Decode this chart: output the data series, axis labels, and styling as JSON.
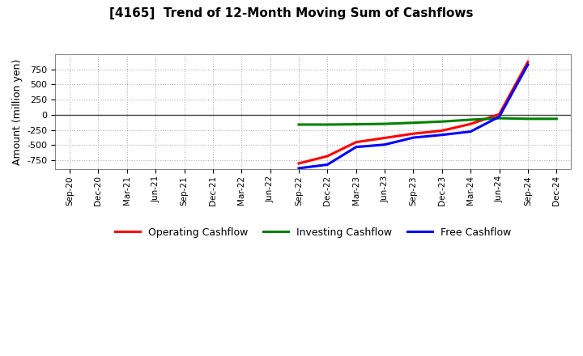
{
  "title": "[4165]  Trend of 12-Month Moving Sum of Cashflows",
  "ylabel": "Amount (million yen)",
  "background_color": "#ffffff",
  "grid_color": "#b0b0b0",
  "x_labels": [
    "Sep-20",
    "Dec-20",
    "Mar-21",
    "Jun-21",
    "Sep-21",
    "Dec-21",
    "Mar-22",
    "Jun-22",
    "Sep-22",
    "Dec-22",
    "Mar-23",
    "Jun-23",
    "Sep-23",
    "Dec-23",
    "Mar-24",
    "Jun-24",
    "Sep-24",
    "Dec-24"
  ],
  "op_x": [
    8,
    9,
    10,
    11,
    12,
    13,
    14,
    15,
    16
  ],
  "op_y": [
    -800,
    -680,
    -450,
    -380,
    -310,
    -260,
    -150,
    10,
    875
  ],
  "inv_x": [
    8,
    9,
    10,
    11,
    12,
    13,
    14,
    15,
    16,
    17
  ],
  "inv_y": [
    -160,
    -160,
    -155,
    -148,
    -130,
    -110,
    -80,
    -55,
    -65,
    -65
  ],
  "free_x": [
    8,
    9,
    10,
    11,
    12,
    13,
    14,
    15,
    16
  ],
  "free_y": [
    -880,
    -820,
    -530,
    -490,
    -375,
    -330,
    -275,
    -30,
    830
  ],
  "ylim": [
    -900,
    1000
  ],
  "yticks": [
    -750,
    -500,
    -250,
    0,
    250,
    500,
    750
  ],
  "operating_color": "#ff0000",
  "investing_color": "#008000",
  "free_color": "#0000ff",
  "line_width": 2.2,
  "legend_labels": [
    "Operating Cashflow",
    "Investing Cashflow",
    "Free Cashflow"
  ]
}
